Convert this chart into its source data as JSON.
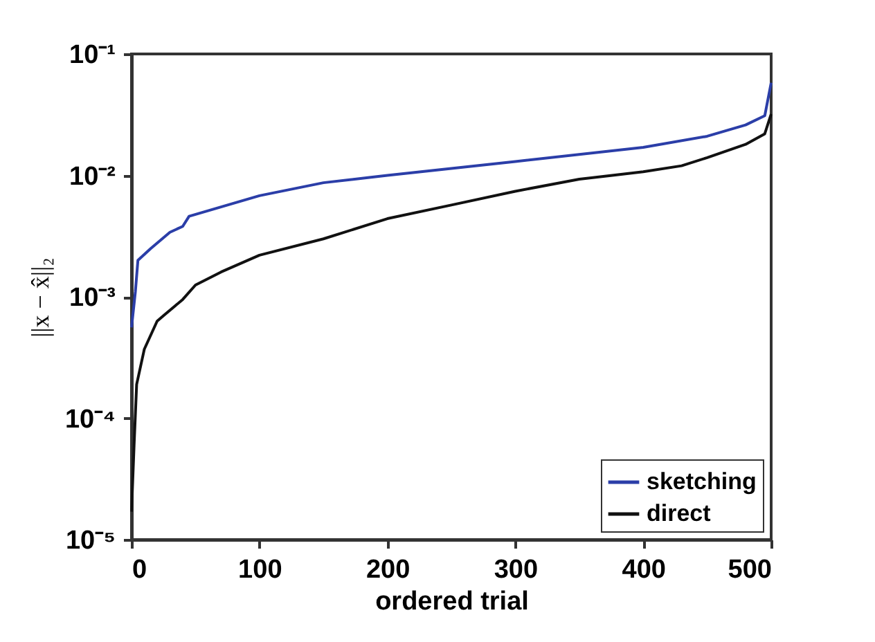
{
  "chart_data": {
    "type": "line",
    "xlabel": "ordered trial",
    "ylabel": "||x − x̂||₂",
    "log": "y",
    "grid": false,
    "legend": "bottom right",
    "line_style": "solid",
    "marker": "none",
    "xlim": [
      0,
      500
    ],
    "xticks": [
      0,
      100,
      200,
      300,
      400,
      500
    ],
    "ylim": [
      1e-05,
      0.1
    ],
    "yticks": [
      {
        "value": 1e-05,
        "label": "10⁻⁵"
      },
      {
        "value": 0.0001,
        "label": "10⁻⁴"
      },
      {
        "value": 0.001,
        "label": "10⁻³"
      },
      {
        "value": 0.01,
        "label": "10⁻²"
      },
      {
        "value": 0.1,
        "label": "10⁻¹"
      }
    ],
    "series": [
      {
        "name": "sketching",
        "color": "#2b3ea8",
        "x": [
          0,
          3,
          5,
          15,
          30,
          40,
          45,
          100,
          150,
          200,
          300,
          400,
          450,
          480,
          495,
          500
        ],
        "values": [
          0.00056,
          0.0011,
          0.002,
          0.0025,
          0.0034,
          0.0038,
          0.0046,
          0.0068,
          0.0087,
          0.01,
          0.013,
          0.017,
          0.021,
          0.026,
          0.031,
          0.058
        ]
      },
      {
        "name": "direct",
        "color": "#111111",
        "x": [
          0,
          2,
          4,
          10,
          20,
          25,
          40,
          50,
          70,
          100,
          150,
          200,
          250,
          300,
          350,
          400,
          430,
          450,
          480,
          495,
          500
        ],
        "values": [
          1.7e-05,
          6e-05,
          0.00019,
          0.00037,
          0.00063,
          0.0007,
          0.00095,
          0.00125,
          0.0016,
          0.0022,
          0.003,
          0.0044,
          0.0057,
          0.0074,
          0.0093,
          0.0107,
          0.012,
          0.014,
          0.018,
          0.022,
          0.032
        ]
      }
    ]
  }
}
